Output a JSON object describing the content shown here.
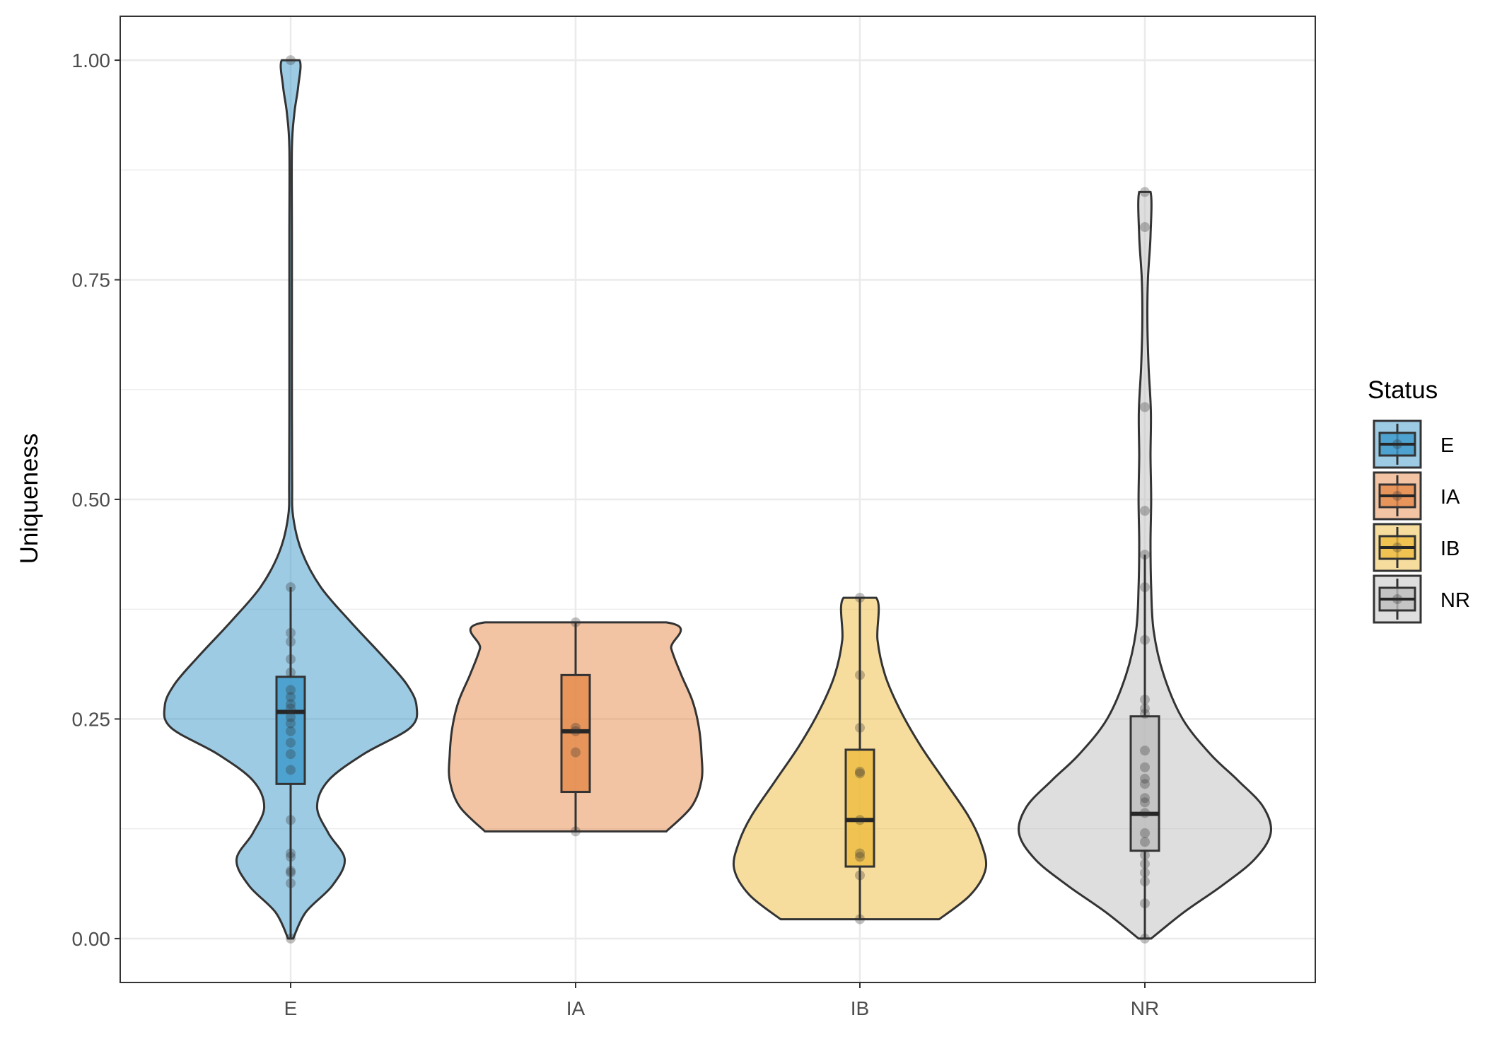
{
  "chart_data": {
    "type": "violin",
    "xlabel": "",
    "ylabel": "Uniqueness",
    "ylim": [
      -0.05,
      1.05
    ],
    "yticks": [
      0.0,
      0.25,
      0.5,
      0.75,
      1.0
    ],
    "ytick_labels": [
      "0.00",
      "0.25",
      "0.50",
      "0.75",
      "1.00"
    ],
    "grid": true,
    "legend_title": "Status",
    "legend_position": "right",
    "categories": [
      "E",
      "IA",
      "IB",
      "NR"
    ],
    "groups": [
      {
        "name": "E",
        "color": "#3B97C9",
        "box": {
          "q1": 0.176,
          "median": 0.258,
          "q3": 0.298,
          "whisker_low": 0.0,
          "whisker_high": 0.4
        },
        "points": [
          1.0,
          0.4,
          0.348,
          0.338,
          0.318,
          0.303,
          0.283,
          0.275,
          0.267,
          0.262,
          0.252,
          0.245,
          0.236,
          0.223,
          0.21,
          0.192,
          0.135,
          0.097,
          0.093,
          0.077,
          0.075,
          0.063,
          0.0
        ],
        "density": [
          [
            0.0,
            0.02
          ],
          [
            0.03,
            0.12
          ],
          [
            0.06,
            0.33
          ],
          [
            0.09,
            0.43
          ],
          [
            0.12,
            0.3
          ],
          [
            0.15,
            0.21
          ],
          [
            0.18,
            0.3
          ],
          [
            0.21,
            0.58
          ],
          [
            0.24,
            0.95
          ],
          [
            0.265,
            1.0
          ],
          [
            0.29,
            0.92
          ],
          [
            0.32,
            0.74
          ],
          [
            0.36,
            0.48
          ],
          [
            0.4,
            0.24
          ],
          [
            0.44,
            0.09
          ],
          [
            0.48,
            0.02
          ],
          [
            0.52,
            0.012
          ],
          [
            0.6,
            0.01
          ],
          [
            0.7,
            0.01
          ],
          [
            0.8,
            0.01
          ],
          [
            0.9,
            0.01
          ],
          [
            0.94,
            0.03
          ],
          [
            0.97,
            0.06
          ],
          [
            1.0,
            0.07
          ]
        ]
      },
      {
        "name": "IA",
        "color": "#E58A49",
        "box": {
          "q1": 0.167,
          "median": 0.236,
          "q3": 0.3,
          "whisker_low": 0.122,
          "whisker_high": 0.36
        },
        "points": [
          0.36,
          0.24,
          0.236,
          0.212,
          0.122
        ],
        "density": [
          [
            0.122,
            0.72
          ],
          [
            0.15,
            0.92
          ],
          [
            0.18,
            1.0
          ],
          [
            0.21,
            1.0
          ],
          [
            0.24,
            0.98
          ],
          [
            0.27,
            0.93
          ],
          [
            0.3,
            0.84
          ],
          [
            0.33,
            0.76
          ],
          [
            0.36,
            0.72
          ]
        ]
      },
      {
        "name": "IB",
        "color": "#EDBC3D",
        "box": {
          "q1": 0.082,
          "median": 0.135,
          "q3": 0.215,
          "whisker_low": 0.022,
          "whisker_high": 0.388
        },
        "points": [
          0.388,
          0.3,
          0.24,
          0.19,
          0.188,
          0.135,
          0.097,
          0.093,
          0.072,
          0.022
        ],
        "density": [
          [
            0.022,
            0.63
          ],
          [
            0.05,
            0.88
          ],
          [
            0.08,
            1.0
          ],
          [
            0.11,
            0.96
          ],
          [
            0.14,
            0.86
          ],
          [
            0.18,
            0.67
          ],
          [
            0.22,
            0.48
          ],
          [
            0.26,
            0.32
          ],
          [
            0.3,
            0.2
          ],
          [
            0.34,
            0.14
          ],
          [
            0.388,
            0.13
          ]
        ]
      },
      {
        "name": "NR",
        "color": "#BDBDBD",
        "box": {
          "q1": 0.1,
          "median": 0.142,
          "q3": 0.253,
          "whisker_low": 0.0,
          "whisker_high": 0.437
        },
        "points": [
          0.85,
          0.81,
          0.605,
          0.487,
          0.437,
          0.4,
          0.34,
          0.272,
          0.262,
          0.256,
          0.214,
          0.195,
          0.182,
          0.176,
          0.16,
          0.155,
          0.143,
          0.12,
          0.11,
          0.095,
          0.085,
          0.075,
          0.065,
          0.04,
          0.0
        ],
        "density": [
          [
            0.0,
            0.05
          ],
          [
            0.03,
            0.31
          ],
          [
            0.06,
            0.61
          ],
          [
            0.09,
            0.87
          ],
          [
            0.12,
            1.0
          ],
          [
            0.15,
            0.94
          ],
          [
            0.18,
            0.74
          ],
          [
            0.21,
            0.52
          ],
          [
            0.25,
            0.3
          ],
          [
            0.3,
            0.15
          ],
          [
            0.35,
            0.07
          ],
          [
            0.4,
            0.05
          ],
          [
            0.45,
            0.045
          ],
          [
            0.5,
            0.05
          ],
          [
            0.55,
            0.045
          ],
          [
            0.6,
            0.048
          ],
          [
            0.65,
            0.03
          ],
          [
            0.7,
            0.02
          ],
          [
            0.75,
            0.024
          ],
          [
            0.8,
            0.045
          ],
          [
            0.85,
            0.045
          ]
        ]
      }
    ]
  }
}
